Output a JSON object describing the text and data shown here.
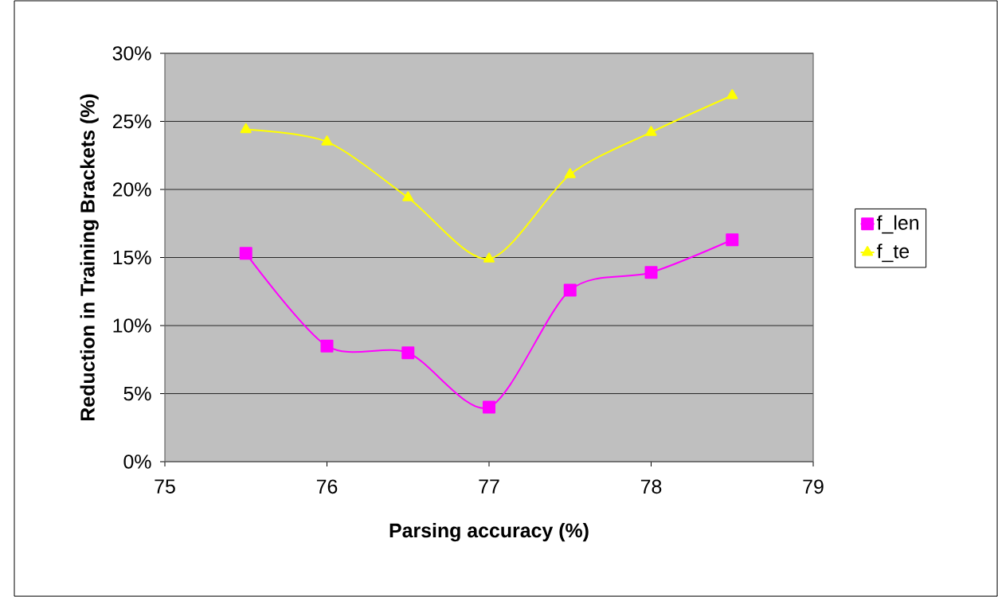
{
  "chart_data": {
    "type": "line",
    "xlabel": "Parsing accuracy (%)",
    "ylabel": "Reduction in Training Brackets (%)",
    "x": [
      75.5,
      76,
      76.5,
      77,
      77.5,
      78,
      78.5
    ],
    "series": [
      {
        "name": "f_len",
        "color": "#ff00ff",
        "marker": "square",
        "values": [
          15.3,
          8.5,
          8.0,
          4.0,
          12.6,
          13.9,
          16.3
        ]
      },
      {
        "name": "f_te",
        "color": "#ffff00",
        "marker": "triangle",
        "values": [
          24.4,
          23.5,
          19.4,
          14.9,
          21.1,
          24.2,
          26.9
        ]
      }
    ],
    "xlim": [
      75,
      79
    ],
    "xticks": [
      75,
      76,
      77,
      78,
      79
    ],
    "ylim": [
      0,
      30
    ],
    "yticks": [
      {
        "value": 0,
        "label": "0%"
      },
      {
        "value": 5,
        "label": "5%"
      },
      {
        "value": 10,
        "label": "10%"
      },
      {
        "value": 15,
        "label": "15%"
      },
      {
        "value": 20,
        "label": "20%"
      },
      {
        "value": 25,
        "label": "25%"
      },
      {
        "value": 30,
        "label": "30%"
      }
    ],
    "grid": "y",
    "legend": "right"
  }
}
